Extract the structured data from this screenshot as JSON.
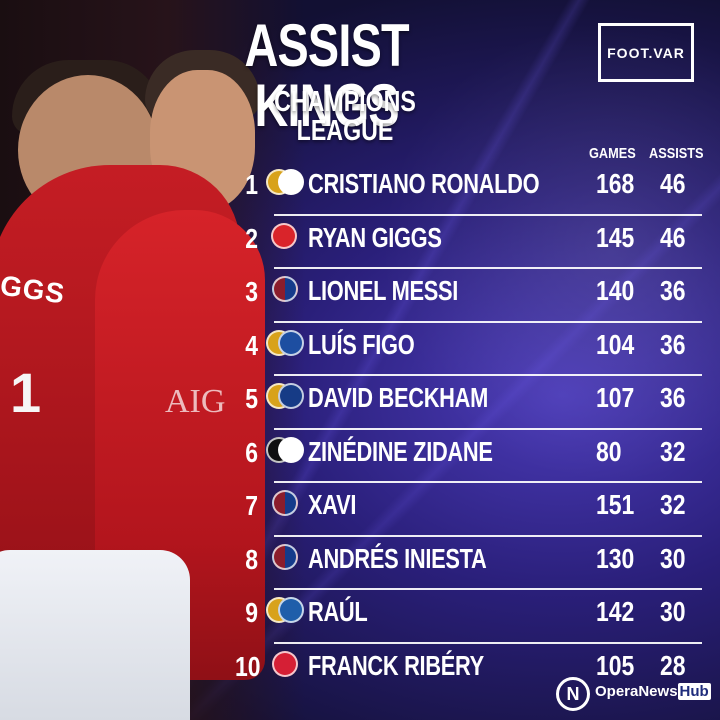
{
  "header": {
    "title": "ASSIST KINGS",
    "subtitle": "CHAMPIONS LEAGUE",
    "logo": "FOOT.VAR"
  },
  "table": {
    "columns": [
      "GAMES",
      "ASSISTS"
    ],
    "rows": [
      {
        "rank": "1",
        "name": "CRISTIANO RONALDO",
        "games": "168",
        "assists": "46",
        "badges": [
          "crest-icon",
          "crest-icon"
        ]
      },
      {
        "rank": "2",
        "name": "RYAN GIGGS",
        "games": "145",
        "assists": "46",
        "badges": [
          "crest-icon"
        ]
      },
      {
        "rank": "3",
        "name": "LIONEL MESSI",
        "games": "140",
        "assists": "36",
        "badges": [
          "crest-icon"
        ]
      },
      {
        "rank": "4",
        "name": "LUÍS FIGO",
        "games": "104",
        "assists": "36",
        "badges": [
          "crest-icon",
          "crest-icon"
        ]
      },
      {
        "rank": "5",
        "name": "DAVID BECKHAM",
        "games": "107",
        "assists": "36",
        "badges": [
          "crest-icon",
          "crest-icon"
        ]
      },
      {
        "rank": "6",
        "name": "ZINÉDINE ZIDANE",
        "games": "80",
        "assists": "32",
        "badges": [
          "crest-icon",
          "crest-icon"
        ]
      },
      {
        "rank": "7",
        "name": "XAVI",
        "games": "151",
        "assists": "32",
        "badges": [
          "crest-icon"
        ]
      },
      {
        "rank": "8",
        "name": "ANDRÉS INIESTA",
        "games": "130",
        "assists": "30",
        "badges": [
          "crest-icon"
        ]
      },
      {
        "rank": "9",
        "name": "RAÚL",
        "games": "142",
        "assists": "30",
        "badges": [
          "crest-icon",
          "crest-icon"
        ]
      },
      {
        "rank": "10",
        "name": "FRANCK RIBÉRY",
        "games": "105",
        "assists": "28",
        "badges": [
          "crest-icon"
        ]
      }
    ]
  },
  "photo": {
    "shirt_text": "GGS",
    "shirt_number": "1",
    "sponsor": "AIG"
  },
  "footer": {
    "brand_prefix": "OperaNews",
    "brand_suffix": "Hub"
  }
}
